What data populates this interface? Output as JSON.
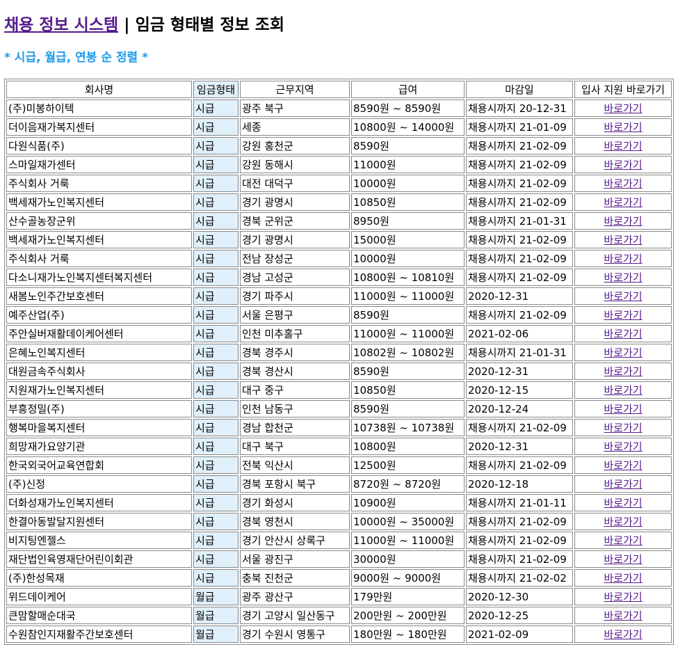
{
  "header": {
    "site_title": "채용 정보 시스템",
    "separator": "|",
    "page_title": "임금 형태별 정보 조회"
  },
  "subtitle": "* 시급, 월급, 연봉 순 정렬 *",
  "table": {
    "columns": [
      "회사명",
      "임금형태",
      "근무지역",
      "급여",
      "마감일",
      "입사 지원 바로가기"
    ],
    "link_label": "바로가기",
    "rows": [
      [
        "(주)미봉하이텍",
        "시급",
        "광주 북구",
        "8590원 ~ 8590원",
        "채용시까지 20-12-31"
      ],
      [
        "더이음재가복지센터",
        "시급",
        "세종",
        "10800원 ~ 14000원",
        "채용시까지 21-01-09"
      ],
      [
        "다원식품(주)",
        "시급",
        "강원 홍천군",
        "8590원",
        "채용시까지 21-02-09"
      ],
      [
        "스마일재가센터",
        "시급",
        "강원 동해시",
        "11000원",
        "채용시까지 21-02-09"
      ],
      [
        "주식회사 거룩",
        "시급",
        "대전 대덕구",
        "10000원",
        "채용시까지 21-02-09"
      ],
      [
        "백세재가노인복지센터",
        "시급",
        "경기 광명시",
        "10850원",
        "채용시까지 21-02-09"
      ],
      [
        "산수골농장군위",
        "시급",
        "경북 군위군",
        "8950원",
        "채용시까지 21-01-31"
      ],
      [
        "백세재가노인복지센터",
        "시급",
        "경기 광명시",
        "15000원",
        "채용시까지 21-02-09"
      ],
      [
        "주식회사 거룩",
        "시급",
        "전남 장성군",
        "10000원",
        "채용시까지 21-02-09"
      ],
      [
        "다소니재가노인복지센터복지센터",
        "시급",
        "경남 고성군",
        "10800원 ~ 10810원",
        "채용시까지 21-02-09"
      ],
      [
        "새봄노인주간보호센터",
        "시급",
        "경기 파주시",
        "11000원 ~ 11000원",
        "2020-12-31"
      ],
      [
        "예주산업(주)",
        "시급",
        "서울 은평구",
        "8590원",
        "채용시까지 21-02-09"
      ],
      [
        "주안실버재활데이케어센터",
        "시급",
        "인천 미추홀구",
        "11000원 ~ 11000원",
        "2021-02-06"
      ],
      [
        "은혜노인복지센터",
        "시급",
        "경북 경주시",
        "10802원 ~ 10802원",
        "채용시까지 21-01-31"
      ],
      [
        "대원금속주식회사",
        "시급",
        "경북 경산시",
        "8590원",
        "2020-12-31"
      ],
      [
        "지원재가노인복지센터",
        "시급",
        "대구 중구",
        "10850원",
        "2020-12-15"
      ],
      [
        "부흥정밀(주)",
        "시급",
        "인천 남동구",
        "8590원",
        "2020-12-24"
      ],
      [
        "행복마을복지센터",
        "시급",
        "경남 합천군",
        "10738원 ~ 10738원",
        "채용시까지 21-02-09"
      ],
      [
        "희망재가요양기관",
        "시급",
        "대구 북구",
        "10800원",
        "2020-12-31"
      ],
      [
        "한국외국어교육연합회",
        "시급",
        "전북 익산시",
        "12500원",
        "채용시까지 21-02-09"
      ],
      [
        "(주)신정",
        "시급",
        "경북 포항시 북구",
        "8720원 ~ 8720원",
        "2020-12-18"
      ],
      [
        "더화성재가노인복지센터",
        "시급",
        "경기 화성시",
        "10900원",
        "채용시까지 21-01-11"
      ],
      [
        "한결아동발달지원센터",
        "시급",
        "경북 영천시",
        "10000원 ~ 35000원",
        "채용시까지 21-02-09"
      ],
      [
        "비지팅엔젤스",
        "시급",
        "경기 안산시 상록구",
        "11000원 ~ 11000원",
        "채용시까지 21-02-09"
      ],
      [
        "재단법인육영재단어린이회관",
        "시급",
        "서울 광진구",
        "30000원",
        "채용시까지 21-02-09"
      ],
      [
        "(주)한성목재",
        "시급",
        "충북 진천군",
        "9000원 ~ 9000원",
        "채용시까지 21-02-02"
      ],
      [
        "위드데이케어",
        "월급",
        "광주 광산구",
        "179만원",
        "2020-12-30"
      ],
      [
        "큰맘할매순대국",
        "월급",
        "경기 고양시 일산동구",
        "200만원 ~ 200만원",
        "2020-12-25"
      ],
      [
        "수원참인지재활주간보호센터",
        "월급",
        "경기 수원시 영통구",
        "180만원 ~ 180만원",
        "2021-02-09"
      ]
    ]
  }
}
